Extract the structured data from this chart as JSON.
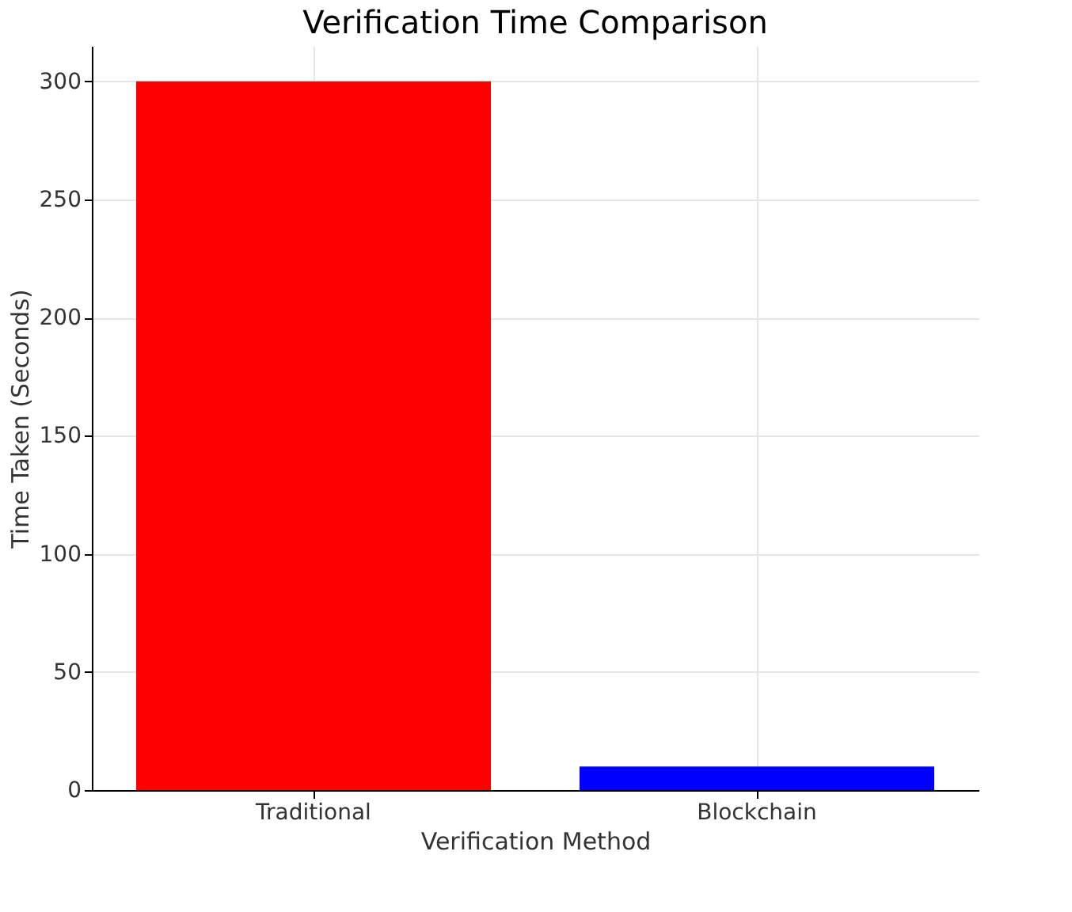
{
  "chart_data": {
    "type": "bar",
    "title": "Verification Time Comparison",
    "xlabel": "Verification Method",
    "ylabel": "Time Taken (Seconds)",
    "categories": [
      "Traditional",
      "Blockchain"
    ],
    "values": [
      300,
      10
    ],
    "colors": [
      "#ff0000",
      "#0000ff"
    ],
    "ylim": [
      0,
      315
    ],
    "yticks": [
      0,
      50,
      100,
      150,
      200,
      250,
      300
    ],
    "grid": true
  }
}
